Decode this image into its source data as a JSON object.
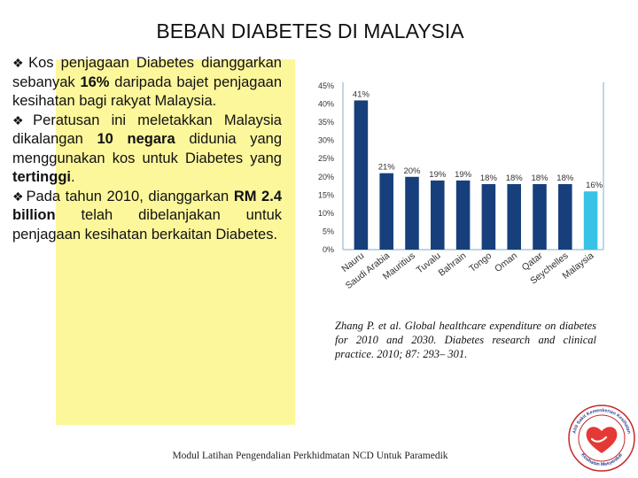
{
  "title": "BEBAN DIABETES DI MALAYSIA",
  "text_box": {
    "paragraphs": [
      {
        "parts": [
          {
            "text": "Kos penjagaan Diabetes dianggarkan sebanyak ",
            "bold": false
          },
          {
            "text": "16%",
            "bold": true
          },
          {
            "text": " daripada bajet penjagaan kesihatan bagi rakyat Malaysia.",
            "bold": false
          }
        ]
      },
      {
        "parts": [
          {
            "text": "Peratusan ini meletakkan Malaysia dikalangan ",
            "bold": false
          },
          {
            "text": "10 negara",
            "bold": true
          },
          {
            "text": " didunia yang menggunakan kos untuk Diabetes yang ",
            "bold": false
          },
          {
            "text": "tertinggi",
            "bold": true
          },
          {
            "text": ".",
            "bold": false
          }
        ]
      },
      {
        "parts": [
          {
            "text": "Pada tahun 2010, dianggarkan ",
            "bold": false
          },
          {
            "text": "RM 2.4 billion",
            "bold": true
          },
          {
            "text": " telah dibelanjakan untuk penjagaan kesihatan berkaitan Diabetes.",
            "bold": false
          }
        ]
      }
    ],
    "bullet_symbol": "❖"
  },
  "chart_data": {
    "type": "bar",
    "categories": [
      "Nauru",
      "Saudi Arabia",
      "Mauritius",
      "Tuvalu",
      "Bahrain",
      "Tongo",
      "Oman",
      "Qatar",
      "Seychelles",
      "Malaysia"
    ],
    "values": [
      41,
      21,
      20,
      19,
      19,
      18,
      18,
      18,
      18,
      16
    ],
    "value_labels": [
      "41%",
      "21%",
      "20%",
      "19%",
      "19%",
      "18%",
      "18%",
      "18%",
      "18%",
      "16%"
    ],
    "yticks": [
      0,
      5,
      10,
      15,
      20,
      25,
      30,
      35,
      40,
      45
    ],
    "ytick_labels": [
      "0%",
      "5%",
      "10%",
      "15%",
      "20%",
      "25%",
      "30%",
      "35%",
      "40%",
      "45%"
    ],
    "ylim": [
      0,
      45
    ],
    "title": "",
    "xlabel": "",
    "ylabel": "",
    "colors": {
      "bar": "#173f7c",
      "highlight": "#38c3e6",
      "axis": "#a9c9dd",
      "text": "#333333"
    },
    "highlight_category": "Malaysia"
  },
  "citation": "Zhang P. et al. Global healthcare expenditure on diabetes for 2010 and 2030. Diabetes research and clinical practice. 2010; 87: 293– 301.",
  "footer": "Modul Latihan Pengendalian Perkhidmatan NCD Untuk Paramedik",
  "logo": {
    "top_text": "Ahli Sakit Kemenkerian Kesihatan",
    "bottom_text": "Kesihatan Masyarakat"
  }
}
